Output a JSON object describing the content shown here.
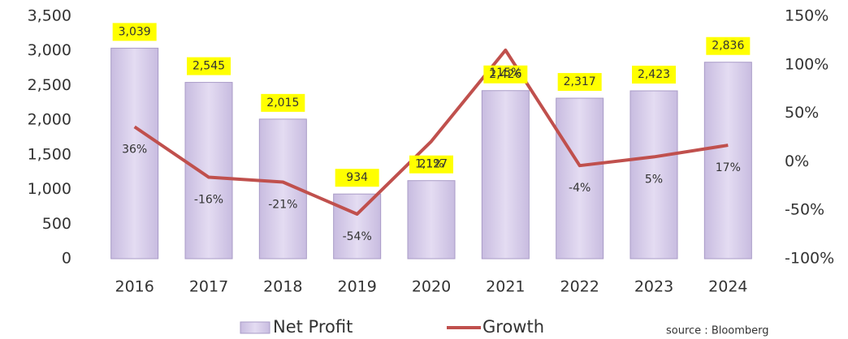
{
  "chart_data": {
    "type": "bar_line",
    "categories": [
      "2016",
      "2017",
      "2018",
      "2019",
      "2020",
      "2021",
      "2022",
      "2023",
      "2024"
    ],
    "series": [
      {
        "name": "Net Profit",
        "color": "#d9d0ea",
        "values": [
          3039,
          2545,
          2015,
          934,
          1127,
          2426,
          2317,
          2423,
          2836
        ],
        "value_labels": [
          "3,039",
          "2,545",
          "2,015",
          "934",
          "1,127",
          "2,426",
          "2,317",
          "2,423",
          "2,836"
        ]
      },
      {
        "name": "Growth",
        "color": "#c0504d",
        "axis": "y2",
        "values": [
          36,
          -16,
          -21,
          -54,
          21,
          115,
          -4,
          5,
          17
        ],
        "value_labels": [
          "36%",
          "-16%",
          "-21%",
          "-54%",
          "21%",
          "115%",
          "-4%",
          "5%",
          "17%"
        ]
      }
    ],
    "ylim": [
      0,
      3500
    ],
    "yticks": [
      0,
      500,
      {
        "value": 1000,
        "label": "1,000"
      },
      {
        "value": 1500,
        "label": "1,500"
      },
      {
        "value": 2000,
        "label": "2,000"
      },
      {
        "value": 2500,
        "label": "2,500"
      },
      {
        "value": 3000,
        "label": "3,000"
      },
      {
        "value": 3500,
        "label": "3,500"
      }
    ],
    "y2lim": [
      -100,
      150
    ],
    "y2ticks": [
      {
        "value": -100,
        "label": "-100%"
      },
      {
        "value": -50,
        "label": "-50%"
      },
      {
        "value": 0,
        "label": "0%"
      },
      {
        "value": 50,
        "label": "50%"
      },
      {
        "value": 100,
        "label": "100%"
      },
      {
        "value": 150,
        "label": "150%"
      }
    ],
    "legend": "bottom",
    "source": "source : Bloomberg"
  }
}
